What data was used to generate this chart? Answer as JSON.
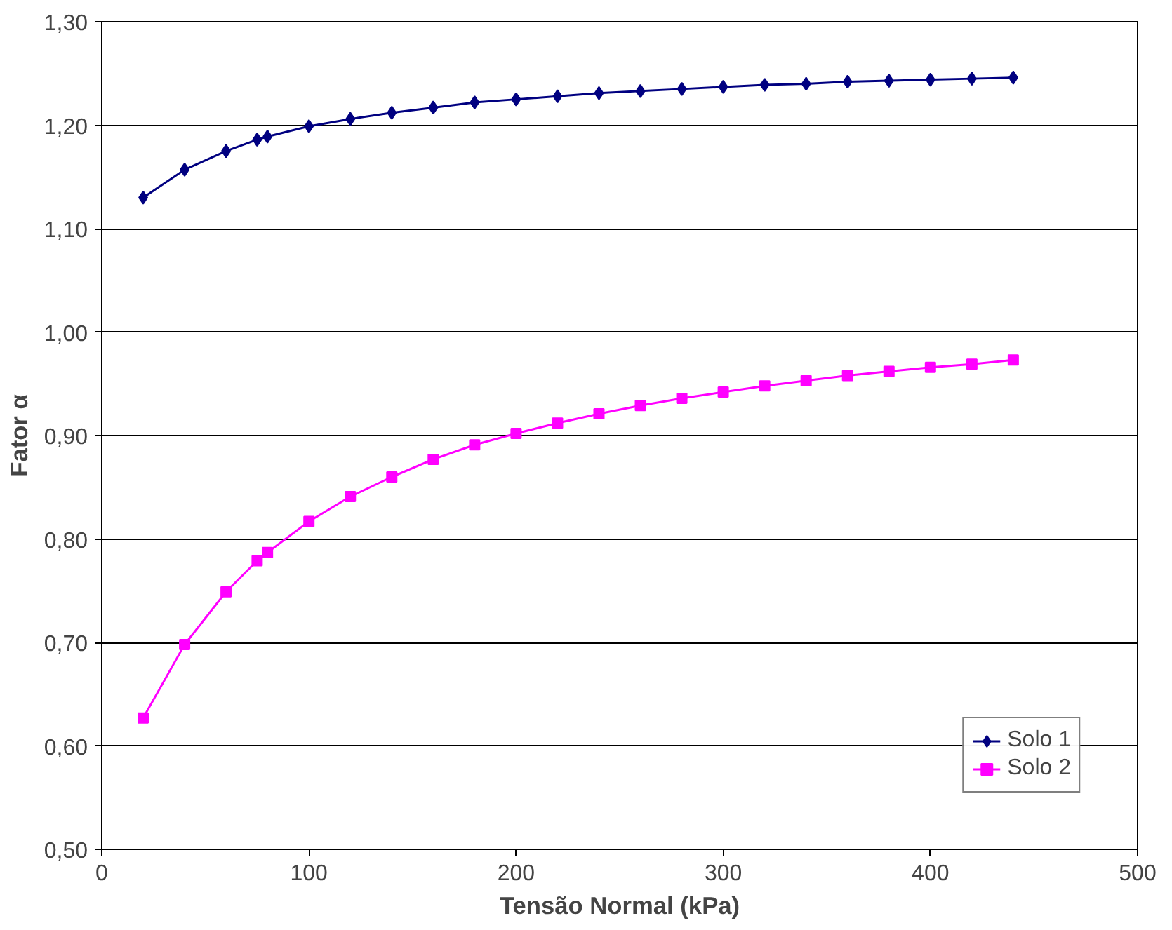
{
  "chart_data": {
    "type": "line",
    "xlabel": "Tensão Normal (kPa)",
    "ylabel": "Fator α",
    "x": [
      20,
      40,
      60,
      75,
      80,
      100,
      120,
      140,
      160,
      180,
      200,
      220,
      240,
      260,
      280,
      300,
      320,
      340,
      360,
      380,
      400,
      420,
      440
    ],
    "series": [
      {
        "name": "Solo 1",
        "color": "#000080",
        "marker": "diamond",
        "values": [
          1.13,
          1.157,
          1.175,
          1.186,
          1.189,
          1.199,
          1.206,
          1.212,
          1.217,
          1.222,
          1.225,
          1.228,
          1.231,
          1.233,
          1.235,
          1.237,
          1.239,
          1.24,
          1.242,
          1.243,
          1.244,
          1.245,
          1.246
        ]
      },
      {
        "name": "Solo 2",
        "color": "#ff00ff",
        "marker": "square",
        "values": [
          0.627,
          0.698,
          0.749,
          0.779,
          0.787,
          0.817,
          0.841,
          0.86,
          0.877,
          0.891,
          0.902,
          0.912,
          0.921,
          0.929,
          0.936,
          0.942,
          0.948,
          0.953,
          0.958,
          0.962,
          0.966,
          0.969,
          0.973
        ]
      }
    ],
    "xlim": [
      0,
      500
    ],
    "xticks": [
      0,
      100,
      200,
      300,
      400,
      500
    ],
    "ylim": [
      0.5,
      1.3
    ],
    "yticks": [
      {
        "value": 0.5,
        "label": "0,50"
      },
      {
        "value": 0.6,
        "label": "0,60"
      },
      {
        "value": 0.7,
        "label": "0,70"
      },
      {
        "value": 0.8,
        "label": "0,80"
      },
      {
        "value": 0.9,
        "label": "0,90"
      },
      {
        "value": 1.0,
        "label": "1,00"
      },
      {
        "value": 1.1,
        "label": "1,10"
      },
      {
        "value": 1.2,
        "label": "1,20"
      },
      {
        "value": 1.3,
        "label": "1,30"
      }
    ],
    "grid": "y",
    "legend": "bottom right"
  }
}
